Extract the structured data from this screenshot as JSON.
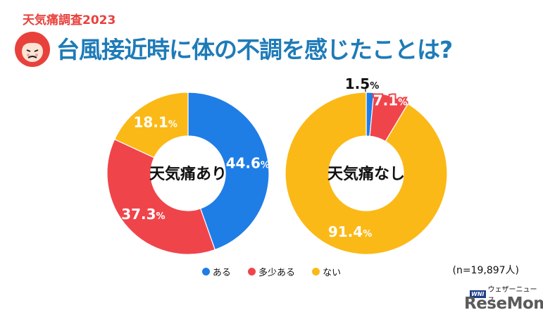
{
  "header": {
    "survey_tag": "天気痛調査2023",
    "question": "台風接近時に体の不調を感じたことは?"
  },
  "colors": {
    "yes": "#1f7de6",
    "somewhat": "#f0444b",
    "no": "#fbb917"
  },
  "chart_data": [
    {
      "type": "pie",
      "center_label": "天気痛あり",
      "slices": [
        {
          "category": "ある",
          "value": 44.6,
          "label": "44.6"
        },
        {
          "category": "多少ある",
          "value": 37.3,
          "label": "37.3"
        },
        {
          "category": "ない",
          "value": 18.1,
          "label": "18.1"
        }
      ],
      "unit": "%"
    },
    {
      "type": "pie",
      "center_label": "天気痛なし",
      "slices": [
        {
          "category": "ある",
          "value": 1.5,
          "label": "1.5"
        },
        {
          "category": "多少ある",
          "value": 7.1,
          "label": "7.1"
        },
        {
          "category": "ない",
          "value": 91.4,
          "label": "91.4"
        }
      ],
      "unit": "%"
    }
  ],
  "legend": [
    "ある",
    "多少ある",
    "ない"
  ],
  "sample_note": "(n=19,897人)",
  "logos": {
    "weathernews": "ウェザーニュース",
    "weathernews_mark": "WNI",
    "resemom": "ReseMom"
  }
}
